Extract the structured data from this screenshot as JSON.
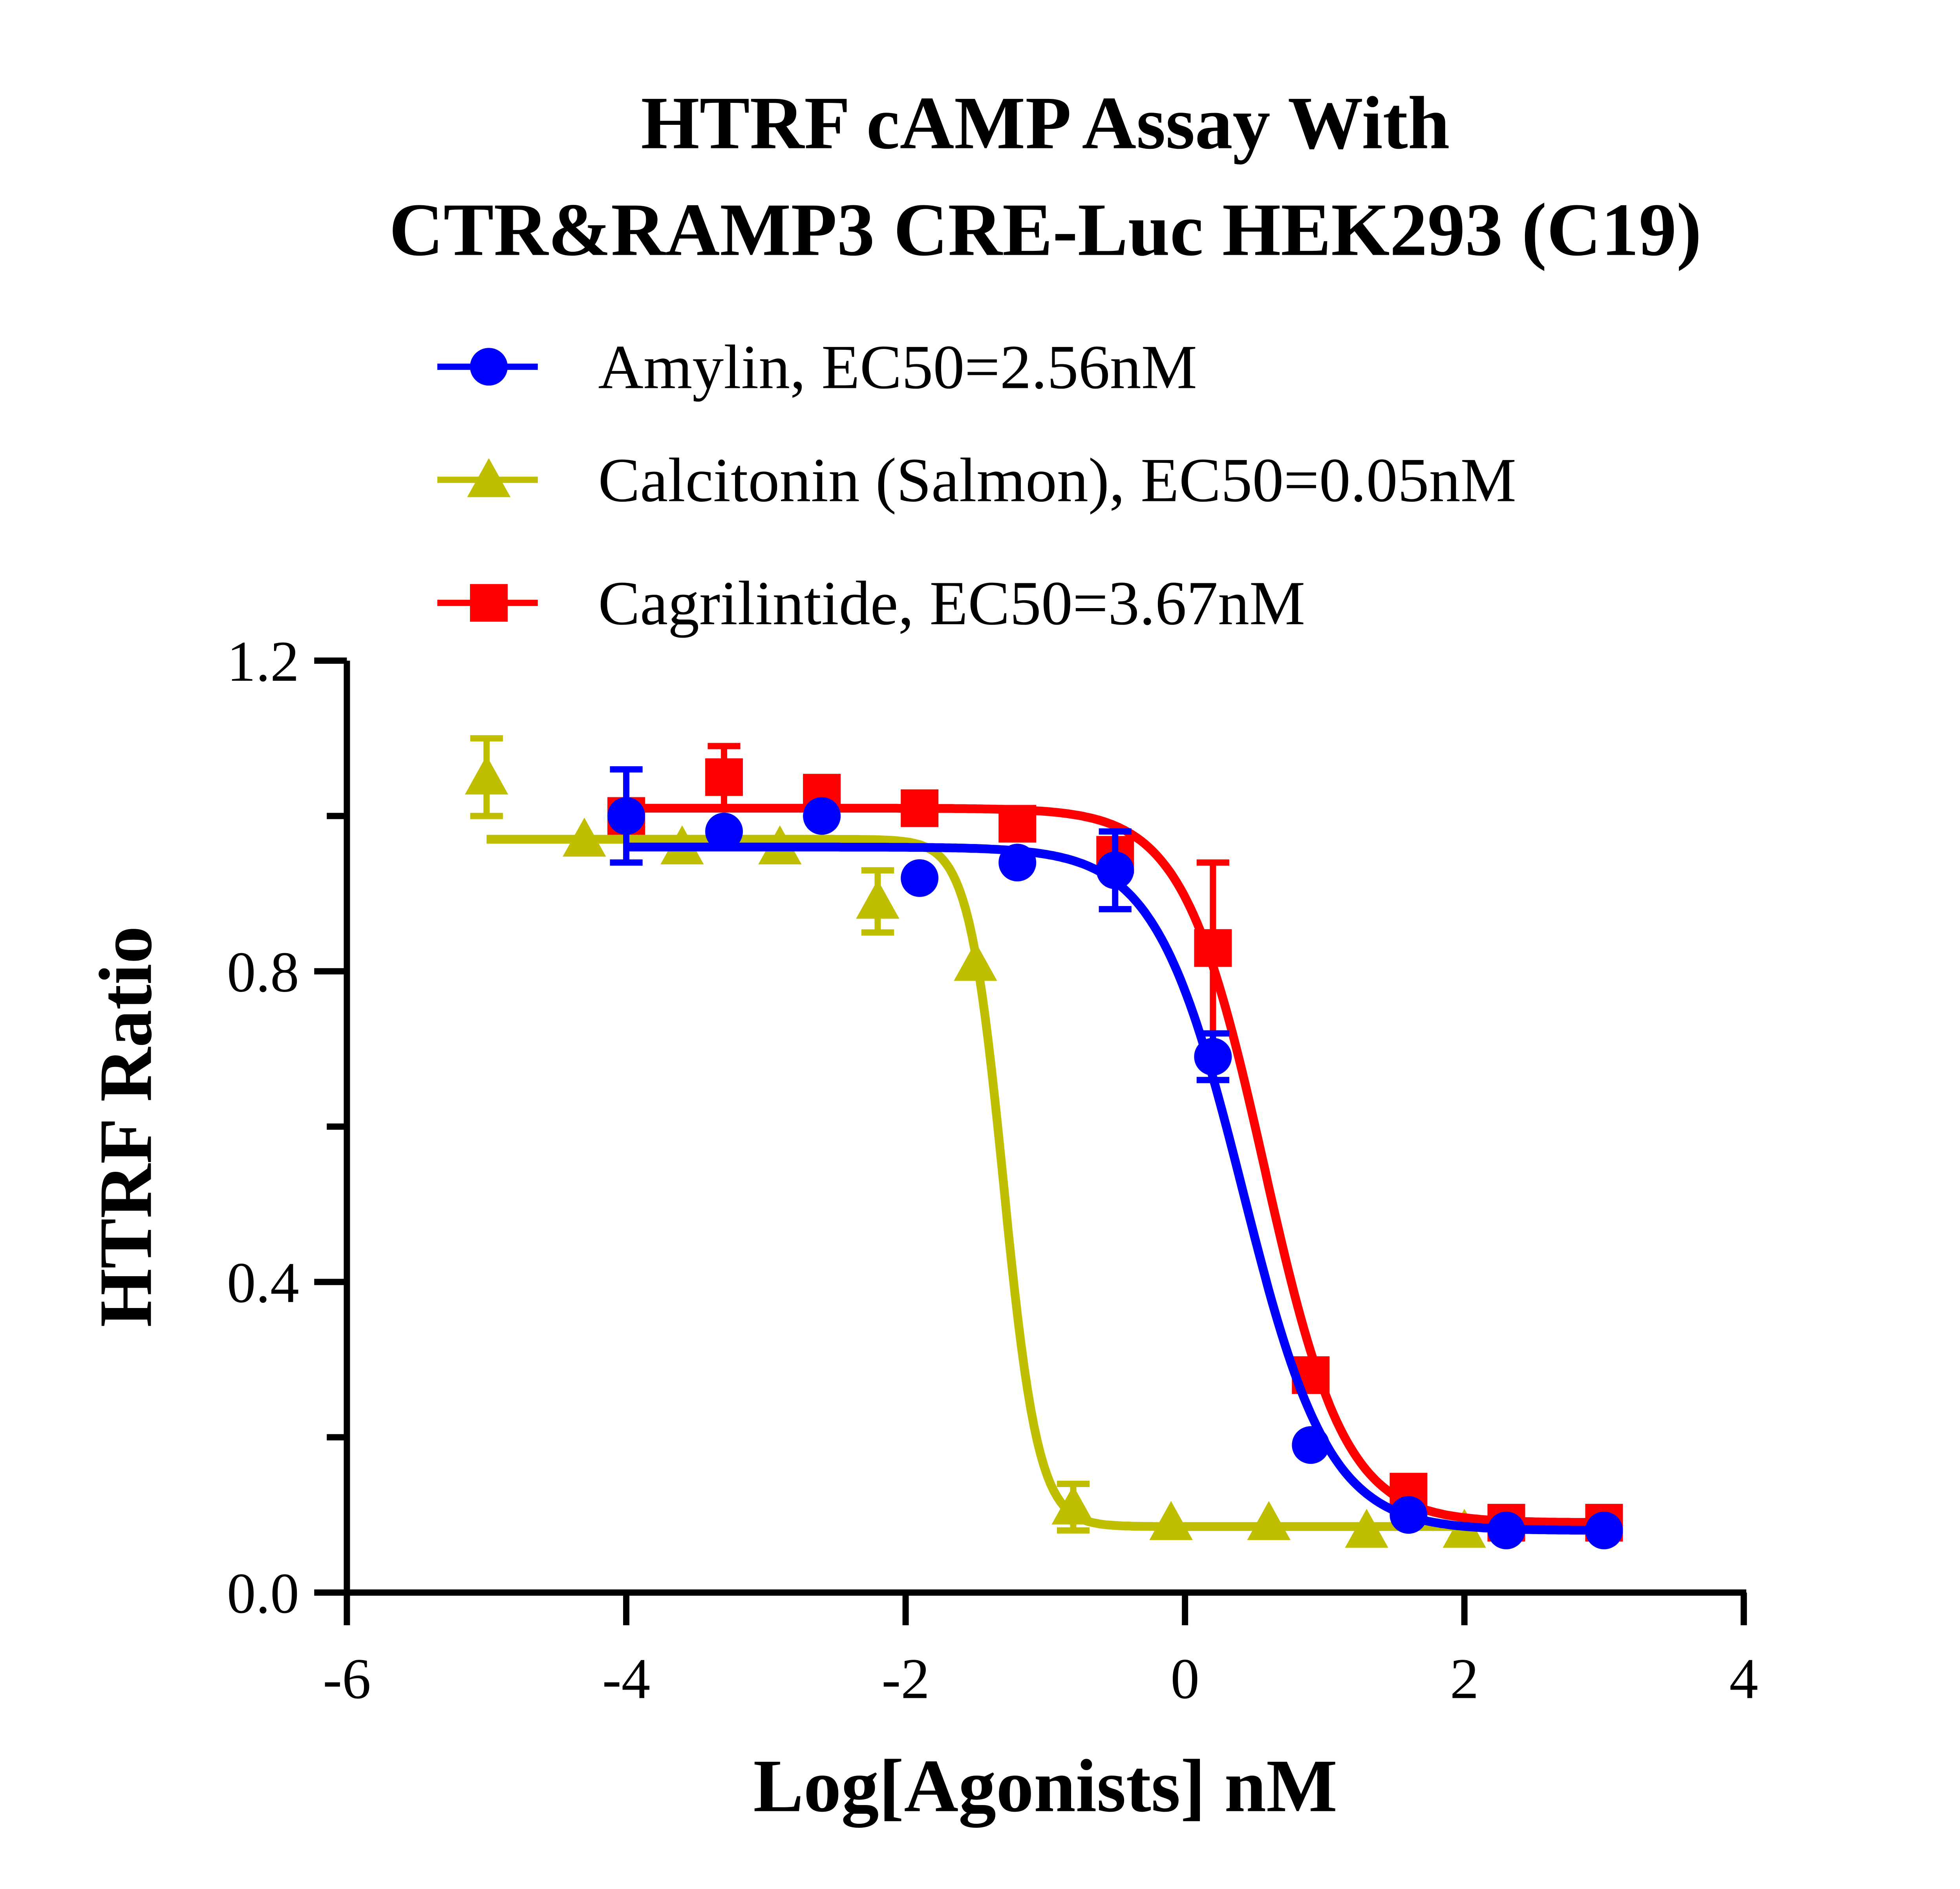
{
  "chart_data": {
    "type": "scatter",
    "title": [
      "HTRF cAMP Assay With",
      "CTR&RAMP3 CRE-Luc HEK293 (C19)"
    ],
    "xlabel": "Log[Agonists] nM",
    "ylabel": "HTRF Ratio",
    "xlim": [
      -6,
      4
    ],
    "ylim": [
      0,
      1.2
    ],
    "xticks": [
      "-6",
      "-4",
      "-2",
      "0",
      "2",
      "4"
    ],
    "yticks": [
      "0.0",
      "0.4",
      "0.8",
      "1.2"
    ],
    "grid": false,
    "legend_position": "top",
    "series": [
      {
        "name": "Amylin,  EC50=2.56nM",
        "color": "#0000FF",
        "marker": "circle",
        "x": [
          -4,
          -3.3,
          -2.6,
          -1.9,
          -1.2,
          -0.5,
          0.2,
          0.9,
          1.6,
          2.3,
          3.0
        ],
        "y": [
          1.0,
          0.98,
          1.0,
          0.92,
          0.94,
          0.93,
          0.69,
          0.19,
          0.1,
          0.08,
          0.08
        ],
        "err": [
          0.06,
          0.01,
          0.01,
          0.01,
          0.01,
          0.05,
          0.03,
          0.01,
          0.01,
          0.01,
          0.01
        ],
        "fit": {
          "top": 0.96,
          "bottom": 0.08,
          "logEC50": 0.41,
          "hill": 1.4
        }
      },
      {
        "name": "Calcitonin (Salmon),  EC50=0.05nM",
        "color": "#BFBF00",
        "marker": "triangle",
        "x": [
          -5,
          -4.3,
          -3.6,
          -2.9,
          -2.2,
          -1.5,
          -0.8,
          -0.1,
          0.6,
          1.3,
          2.0
        ],
        "y": [
          1.05,
          0.97,
          0.96,
          0.96,
          0.89,
          0.81,
          0.11,
          0.09,
          0.09,
          0.08,
          0.08
        ],
        "err": [
          0.05,
          0.01,
          0.01,
          0.01,
          0.04,
          0.01,
          0.03,
          0.01,
          0.01,
          0.01,
          0.01
        ],
        "fit": {
          "top": 0.97,
          "bottom": 0.085,
          "logEC50": -1.3,
          "hill": 3.5
        }
      },
      {
        "name": "Cagrilintide,  EC50=3.67nM",
        "color": "#FF0000",
        "marker": "square",
        "x": [
          -4,
          -3.3,
          -2.6,
          -1.9,
          -1.2,
          -0.5,
          0.2,
          0.9,
          1.6,
          2.3,
          3.0
        ],
        "y": [
          1.0,
          1.05,
          1.03,
          1.01,
          0.99,
          0.95,
          0.83,
          0.28,
          0.13,
          0.09,
          0.09
        ],
        "err": [
          0.01,
          0.04,
          0.02,
          0.01,
          0.01,
          0.02,
          0.11,
          0.02,
          0.02,
          0.01,
          0.01
        ],
        "fit": {
          "top": 1.01,
          "bottom": 0.09,
          "logEC50": 0.565,
          "hill": 1.5
        }
      }
    ]
  }
}
